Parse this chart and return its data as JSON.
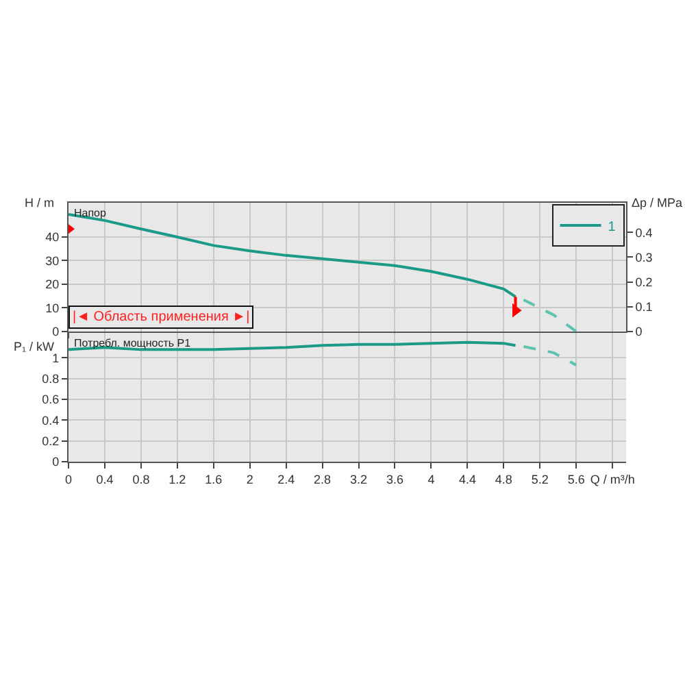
{
  "chart_data": [
    {
      "type": "line",
      "ylabel": "H / m",
      "y2label": "Δp / MPa",
      "annotations": [
        "Напор",
        "|◄ Область применения ►|"
      ],
      "xlim": [
        0,
        6.15
      ],
      "xticks": [
        0,
        0.4,
        0.8,
        1.2,
        1.6,
        2,
        2.4,
        2.8,
        3.2,
        3.6,
        4,
        4.4,
        4.8,
        5.2,
        5.6,
        {
          "value": 6,
          "label": null
        }
      ],
      "ylim": [
        0,
        54.5
      ],
      "yticks": [
        0,
        10,
        20,
        30,
        40
      ],
      "y2lim": [
        0,
        0.52
      ],
      "y2ticks": [
        0,
        0.1,
        0.2,
        0.3,
        0.4
      ],
      "grid": true,
      "legend": "top right",
      "tick_labels": "y",
      "line_style": "solid",
      "series": [
        {
          "name": "1",
          "color": "#1a9a87",
          "x": [
            0,
            0.4,
            0.8,
            1.2,
            1.6,
            2.0,
            2.4,
            2.8,
            3.2,
            3.6,
            4.0,
            4.4,
            4.8,
            4.93
          ],
          "values": [
            49.6,
            47,
            43.4,
            40,
            36.4,
            34.1,
            32.2,
            30.8,
            29.3,
            27.9,
            25.4,
            22.1,
            18,
            14.7
          ]
        },
        {
          "color": "#5cc3b0",
          "line_style": "dashed",
          "x": [
            5.02,
            5.35,
            5.6
          ],
          "values": [
            13.4,
            7,
            0
          ]
        },
        {
          "type": "line",
          "color": "#ff0000",
          "x": [
            4.93,
            4.93
          ],
          "values": [
            14.7,
            8.9
          ]
        },
        {
          "type": "scatter",
          "marker": "triangle",
          "color": "#ff0000",
          "x": [
            0,
            4.93
          ],
          "values": [
            43.4,
            8.9
          ]
        }
      ]
    },
    {
      "type": "line",
      "ylabel": "P₁ / kW",
      "annotations": [
        "Потребл. мощность P1"
      ],
      "xlim": [
        0,
        6.15
      ],
      "xticks": [
        0,
        0.4,
        0.8,
        1.2,
        1.6,
        2,
        2.4,
        2.8,
        3.2,
        3.6,
        4,
        4.4,
        4.8,
        5.2,
        5.6,
        {
          "value": 6,
          "label": "Q / m³/h"
        }
      ],
      "ylim": [
        0,
        1.24
      ],
      "yticks": [
        0,
        0.2,
        0.4,
        0.6,
        0.8,
        1
      ],
      "grid": true,
      "line_style": "solid",
      "series": [
        {
          "color": "#1a9a87",
          "x": [
            0,
            0.4,
            0.8,
            1.2,
            1.6,
            2.0,
            2.4,
            2.8,
            3.2,
            3.6,
            4.0,
            4.4,
            4.8,
            4.93
          ],
          "values": [
            1.08,
            1.1,
            1.08,
            1.08,
            1.08,
            1.09,
            1.1,
            1.12,
            1.13,
            1.13,
            1.14,
            1.15,
            1.14,
            1.12
          ]
        },
        {
          "color": "#5cc3b0",
          "line_style": "dashed",
          "x": [
            5.02,
            5.35,
            5.6
          ],
          "values": [
            1.11,
            1.05,
            0.93
          ]
        }
      ]
    }
  ]
}
